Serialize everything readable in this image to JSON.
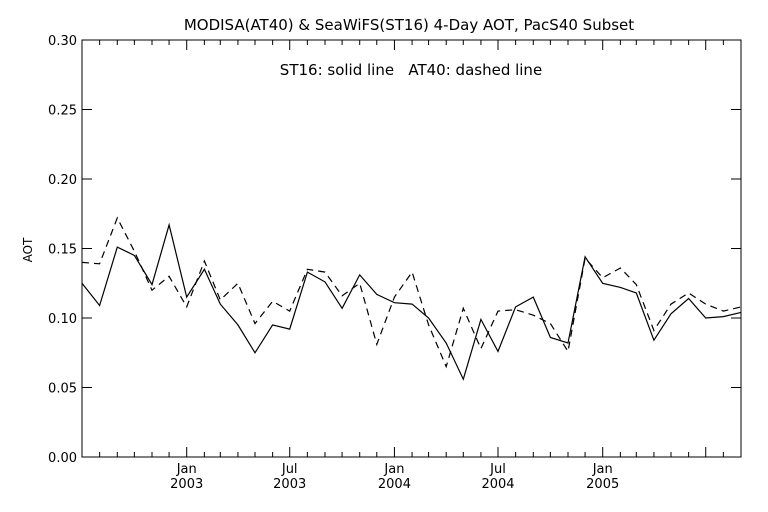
{
  "chart_data": {
    "type": "line",
    "title": "MODISA(AT40) & SeaWiFS(ST16) 4-Day AOT, PacS40 Subset",
    "annotation": "ST16: solid line   AT40: dashed line",
    "xlabel": "",
    "ylabel": "AOT",
    "ylim": [
      0.0,
      0.3
    ],
    "xlim": [
      "2002-07-01",
      "2005-09-01"
    ],
    "grid": false,
    "y_ticks": [
      "0.00",
      "0.05",
      "0.10",
      "0.15",
      "0.20",
      "0.25",
      "0.30"
    ],
    "x_ticks": [
      {
        "date": "2003-01-01",
        "label_top": "Jan",
        "label_bottom": "2003"
      },
      {
        "date": "2003-07-01",
        "label_top": "Jul",
        "label_bottom": "2003"
      },
      {
        "date": "2004-01-01",
        "label_top": "Jan",
        "label_bottom": "2004"
      },
      {
        "date": "2004-07-01",
        "label_top": "Jul",
        "label_bottom": "2004"
      },
      {
        "date": "2005-01-01",
        "label_top": "Jan",
        "label_bottom": "2005"
      }
    ],
    "series": [
      {
        "name": "ST16",
        "style": "solid",
        "color": "#000000",
        "x": [
          "2002-07-01",
          "2002-08-01",
          "2002-09-01",
          "2002-10-01",
          "2002-11-01",
          "2002-12-01",
          "2003-01-01",
          "2003-02-01",
          "2003-03-01",
          "2003-04-01",
          "2003-05-01",
          "2003-06-01",
          "2003-07-01",
          "2003-08-01",
          "2003-09-01",
          "2003-10-01",
          "2003-11-01",
          "2003-12-01",
          "2004-01-01",
          "2004-02-01",
          "2004-03-01",
          "2004-04-01",
          "2004-05-01",
          "2004-06-01",
          "2004-07-01",
          "2004-08-01",
          "2004-09-01",
          "2004-10-01",
          "2004-11-01",
          "2004-12-01",
          "2005-01-01",
          "2005-02-01",
          "2005-03-01",
          "2005-04-01",
          "2005-05-01",
          "2005-06-01",
          "2005-07-01",
          "2005-08-01",
          "2005-09-01"
        ],
        "y": [
          0.125,
          0.109,
          0.151,
          0.145,
          0.124,
          0.167,
          0.115,
          0.135,
          0.11,
          0.095,
          0.075,
          0.095,
          0.092,
          0.133,
          0.126,
          0.107,
          0.131,
          0.117,
          0.111,
          0.11,
          0.1,
          0.082,
          0.056,
          0.099,
          0.076,
          0.108,
          0.115,
          0.086,
          0.082,
          0.144,
          0.125,
          0.122,
          0.118,
          0.084,
          0.103,
          0.114,
          0.1,
          0.101,
          0.104
        ]
      },
      {
        "name": "AT40",
        "style": "dashed",
        "color": "#000000",
        "x": [
          "2002-07-01",
          "2002-08-01",
          "2002-09-01",
          "2002-10-01",
          "2002-11-01",
          "2002-12-01",
          "2003-01-01",
          "2003-02-01",
          "2003-03-01",
          "2003-04-01",
          "2003-05-01",
          "2003-06-01",
          "2003-07-01",
          "2003-08-01",
          "2003-09-01",
          "2003-10-01",
          "2003-11-01",
          "2003-12-01",
          "2004-01-01",
          "2004-02-01",
          "2004-03-01",
          "2004-04-01",
          "2004-05-01",
          "2004-06-01",
          "2004-07-01",
          "2004-08-01",
          "2004-09-01",
          "2004-10-01",
          "2004-11-01",
          "2004-12-01",
          "2005-01-01",
          "2005-02-01",
          "2005-03-01",
          "2005-04-01",
          "2005-05-01",
          "2005-06-01",
          "2005-07-01",
          "2005-08-01",
          "2005-09-01"
        ],
        "y": [
          0.14,
          0.139,
          0.172,
          0.148,
          0.12,
          0.13,
          0.108,
          0.141,
          0.113,
          0.125,
          0.096,
          0.112,
          0.105,
          0.135,
          0.133,
          0.116,
          0.125,
          0.081,
          0.115,
          0.133,
          0.095,
          0.065,
          0.107,
          0.078,
          0.105,
          0.106,
          0.102,
          0.096,
          0.076,
          0.143,
          0.129,
          0.136,
          0.124,
          0.091,
          0.11,
          0.118,
          0.11,
          0.105,
          0.108
        ]
      }
    ]
  }
}
